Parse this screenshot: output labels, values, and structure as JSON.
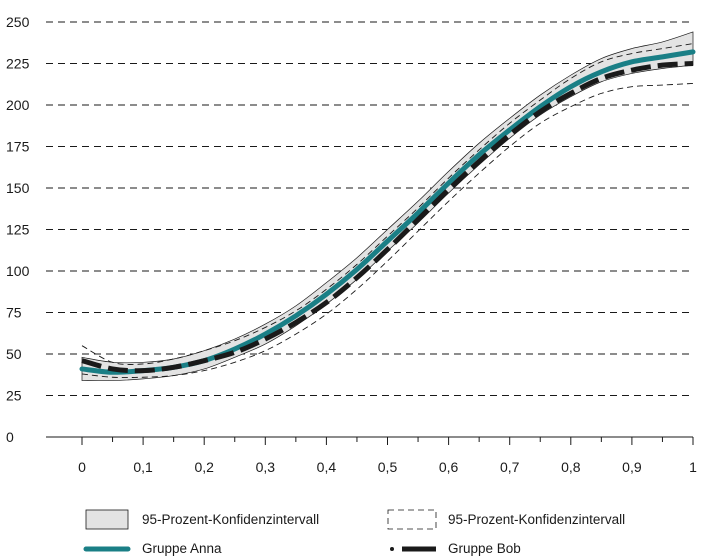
{
  "chart_data": {
    "type": "line",
    "title": "",
    "xlabel": "",
    "ylabel": "",
    "xlim": [
      0,
      1
    ],
    "ylim": [
      0,
      250
    ],
    "x_ticks": [
      0,
      0.1,
      0.2,
      0.3,
      0.4,
      0.5,
      0.6,
      0.7,
      0.8,
      0.9,
      1
    ],
    "x_tick_labels": [
      "0",
      "0,1",
      "0,2",
      "0,3",
      "0,4",
      "0,5",
      "0,6",
      "0,7",
      "0,8",
      "0,9",
      "1"
    ],
    "y_ticks": [
      0,
      25,
      50,
      75,
      100,
      125,
      150,
      175,
      200,
      225,
      250
    ],
    "y_tick_labels": [
      "0",
      "25",
      "50",
      "75",
      "100",
      "125",
      "150",
      "175",
      "200",
      "225",
      "250"
    ],
    "grid": "horizontal dashed",
    "x": [
      0,
      0.05,
      0.1,
      0.15,
      0.2,
      0.25,
      0.3,
      0.35,
      0.4,
      0.45,
      0.5,
      0.55,
      0.6,
      0.65,
      0.7,
      0.75,
      0.8,
      0.85,
      0.9,
      0.95,
      1
    ],
    "series": [
      {
        "name": "Gruppe Anna",
        "color": "#1a7f86",
        "values": [
          41,
          39,
          40,
          42,
          46,
          53,
          62,
          73,
          86,
          101,
          118,
          135,
          153,
          170,
          185,
          199,
          211,
          220,
          226,
          229,
          232
        ]
      },
      {
        "name": "Gruppe Bob",
        "color": "#1a1a1a",
        "values": [
          46,
          41,
          40,
          42,
          46,
          51,
          59,
          69,
          81,
          96,
          113,
          131,
          149,
          166,
          182,
          196,
          207,
          216,
          221,
          224,
          225
        ]
      }
    ],
    "bands": [
      {
        "name": "95-Prozent-Konfidenzintervall",
        "for_series": "Gruppe Anna",
        "style": "filled",
        "fill": "#e3e3e3",
        "lower": [
          34,
          34,
          35,
          37,
          41,
          48,
          56,
          67,
          80,
          95,
          112,
          129,
          147,
          164,
          180,
          194,
          205,
          214,
          219,
          222,
          224
        ],
        "upper": [
          48,
          45,
          45,
          47,
          52,
          59,
          68,
          79,
          93,
          108,
          125,
          142,
          160,
          177,
          192,
          206,
          218,
          228,
          234,
          238,
          244
        ]
      },
      {
        "name": "95-Prozent-Konfidenzintervall",
        "for_series": "Gruppe Bob",
        "style": "dashed outline",
        "lower": [
          38,
          36,
          36,
          37,
          40,
          45,
          52,
          62,
          74,
          89,
          106,
          124,
          142,
          159,
          175,
          189,
          199,
          207,
          211,
          212,
          213
        ],
        "upper": [
          55,
          45,
          44,
          47,
          52,
          58,
          66,
          76,
          89,
          104,
          121,
          138,
          156,
          173,
          189,
          203,
          216,
          226,
          231,
          234,
          237
        ]
      }
    ],
    "legend_placement": "bottom",
    "legend": [
      {
        "label": "95-Prozent-Konfidenzintervall",
        "symbol": "filled-box"
      },
      {
        "label": "95-Prozent-Konfidenzintervall",
        "symbol": "dashed-box"
      },
      {
        "label": "Gruppe Anna",
        "symbol": "teal-line"
      },
      {
        "label": "Gruppe Bob",
        "symbol": "black-dashed-line"
      }
    ]
  }
}
